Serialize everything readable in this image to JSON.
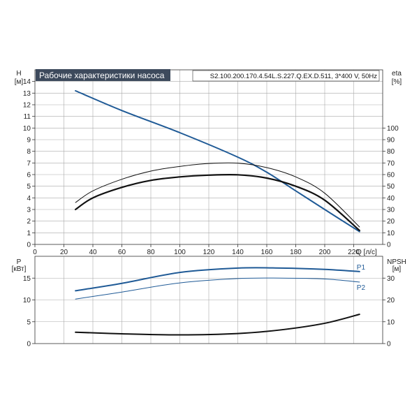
{
  "header": {
    "title": "Рабочие характеристики насоса",
    "model": "S2.100.200.170.4.54L.S.227.Q.EX.D.511, 3*400 V, 50Hz"
  },
  "colors": {
    "blue": "#1f5a96",
    "black": "#111111",
    "title_bg": "#3d4a5c"
  },
  "chart_data": [
    {
      "type": "line",
      "xlabel": "Q [л/с]",
      "ylabel_left": "H",
      "ylabel_left_unit": "[м]",
      "ylabel_right": "eta",
      "ylabel_right_unit": "[%]",
      "xlim": [
        0,
        240
      ],
      "ylim_left": [
        0,
        15
      ],
      "ylim_right": [
        0,
        150
      ],
      "xticks": [
        0,
        20,
        40,
        60,
        80,
        100,
        120,
        140,
        160,
        180,
        200,
        220
      ],
      "yticks_left": [
        0,
        1,
        2,
        3,
        4,
        5,
        6,
        7,
        8,
        9,
        10,
        11,
        12,
        13,
        14
      ],
      "yticks_right": [
        0,
        10,
        20,
        30,
        40,
        50,
        60,
        70,
        80,
        90,
        100
      ],
      "grid": true,
      "series": [
        {
          "axis": "left",
          "color": "#1f5a96",
          "width": 2.0,
          "x": [
            28,
            60,
            100,
            140,
            160,
            180,
            200,
            224
          ],
          "y": [
            13.2,
            11.5,
            9.6,
            7.5,
            6.2,
            4.6,
            3.0,
            1.1
          ]
        },
        {
          "axis": "right",
          "color": "#111111",
          "width": 1.0,
          "x": [
            28,
            40,
            60,
            80,
            100,
            120,
            140,
            160,
            180,
            200,
            224
          ],
          "y": [
            36,
            46,
            56,
            63,
            67,
            69.5,
            69.8,
            66,
            58,
            44,
            15
          ]
        },
        {
          "axis": "right",
          "color": "#111111",
          "width": 2.2,
          "x": [
            28,
            40,
            60,
            80,
            100,
            120,
            140,
            160,
            180,
            200,
            224
          ],
          "y": [
            30,
            40,
            49,
            55,
            58,
            59.5,
            59.8,
            57,
            50,
            38,
            12
          ]
        }
      ]
    },
    {
      "type": "line",
      "ylabel_left": "P",
      "ylabel_left_unit": "[кВт]",
      "ylabel_right": "NPSH",
      "ylabel_right_unit": "[м]",
      "xlim": [
        0,
        240
      ],
      "ylim_left": [
        0,
        20
      ],
      "ylim_right": [
        0,
        40
      ],
      "yticks_left": [
        0,
        5,
        10,
        15
      ],
      "yticks_right": [
        0,
        10,
        20,
        30
      ],
      "grid": true,
      "series": [
        {
          "name": "P1",
          "axis": "left",
          "color": "#1f5a96",
          "width": 2.0,
          "x": [
            28,
            60,
            100,
            140,
            170,
            200,
            224
          ],
          "y": [
            12.1,
            13.8,
            16.3,
            17.3,
            17.3,
            17.0,
            16.5
          ]
        },
        {
          "name": "P2",
          "axis": "left",
          "color": "#1f5a96",
          "width": 1.0,
          "x": [
            28,
            60,
            100,
            140,
            170,
            200,
            224
          ],
          "y": [
            10.2,
            11.8,
            13.9,
            14.9,
            15.0,
            14.8,
            14.1
          ]
        },
        {
          "axis": "right",
          "color": "#111111",
          "width": 2.0,
          "x": [
            28,
            60,
            100,
            140,
            170,
            200,
            224
          ],
          "y": [
            5.2,
            4.5,
            4.0,
            4.6,
            6.3,
            9.3,
            13.4
          ]
        }
      ]
    }
  ]
}
